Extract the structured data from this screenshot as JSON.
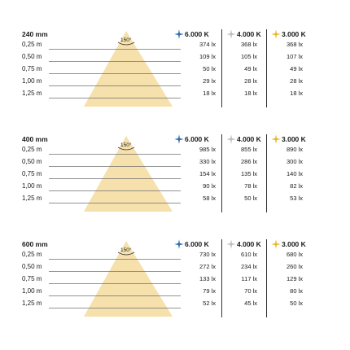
{
  "colors": {
    "cone_fill": "#f6e1ac",
    "cool_icon": "#2f6db3",
    "neutral_icon": "#bfbfbf",
    "warm_icon": "#e9b824",
    "rule_line": "#6f6f6f"
  },
  "columns": [
    {
      "label": "6.000 K",
      "icon": "star-icon-blue"
    },
    {
      "label": "4.000 K",
      "icon": "star-icon-gray"
    },
    {
      "label": "3.000 K",
      "icon": "star-icon-yellow"
    }
  ],
  "blocks": [
    {
      "title": "240 mm",
      "angle": "150°",
      "rows": [
        {
          "distance": "0,25 m",
          "v6000": "374 lx",
          "v4000": "368 lx",
          "v3000": "368 lx"
        },
        {
          "distance": "0,50 m",
          "v6000": "109 lx",
          "v4000": "105 lx",
          "v3000": "107 lx"
        },
        {
          "distance": "0,75 m",
          "v6000": "50 lx",
          "v4000": "49 lx",
          "v3000": "49 lx"
        },
        {
          "distance": "1,00 m",
          "v6000": "29 lx",
          "v4000": "28 lx",
          "v3000": "28 lx"
        },
        {
          "distance": "1,25 m",
          "v6000": "18 lx",
          "v4000": "18 lx",
          "v3000": "18 lx"
        }
      ]
    },
    {
      "title": "400 mm",
      "angle": "150°",
      "rows": [
        {
          "distance": "0,25 m",
          "v6000": "985 lx",
          "v4000": "855 lx",
          "v3000": "890 lx"
        },
        {
          "distance": "0,50 m",
          "v6000": "330 lx",
          "v4000": "286 lx",
          "v3000": "300 lx"
        },
        {
          "distance": "0,75 m",
          "v6000": "154 lx",
          "v4000": "135 lx",
          "v3000": "140 lx"
        },
        {
          "distance": "1,00 m",
          "v6000": "90 lx",
          "v4000": "78 lx",
          "v3000": "82 lx"
        },
        {
          "distance": "1,25 m",
          "v6000": "58 lx",
          "v4000": "50 lx",
          "v3000": "53 lx"
        }
      ]
    },
    {
      "title": "600 mm",
      "angle": "150°",
      "rows": [
        {
          "distance": "0,25 m",
          "v6000": "730 lx",
          "v4000": "610 lx",
          "v3000": "680 lx"
        },
        {
          "distance": "0,50 m",
          "v6000": "272 lx",
          "v4000": "234 lx",
          "v3000": "260 lx"
        },
        {
          "distance": "0,75 m",
          "v6000": "133 lx",
          "v4000": "117 lx",
          "v3000": "129 lx"
        },
        {
          "distance": "1,00 m",
          "v6000": "79 lx",
          "v4000": "70 lx",
          "v3000": "80 lx"
        },
        {
          "distance": "1,25 m",
          "v6000": "52 lx",
          "v4000": "45 lx",
          "v3000": "50 lx"
        }
      ]
    }
  ]
}
